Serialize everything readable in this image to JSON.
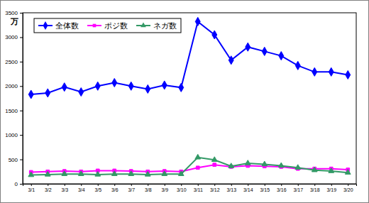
{
  "chart_data": {
    "type": "line",
    "y_label": "万",
    "categories": [
      "3/1",
      "3/2",
      "3/3",
      "3/4",
      "3/5",
      "3/6",
      "3/7",
      "3/8",
      "3/9",
      "3/10",
      "3/11",
      "3/12",
      "3/13",
      "3/14",
      "3/15",
      "3/16",
      "3/17",
      "3/18",
      "3/19",
      "3/20"
    ],
    "series": [
      {
        "name": "全体数",
        "color": "#0000ff",
        "marker": "diamond",
        "values": [
          1830,
          1860,
          1980,
          1880,
          2000,
          2070,
          2000,
          1940,
          2020,
          1970,
          3320,
          3050,
          2530,
          2800,
          2710,
          2620,
          2420,
          2290,
          2290,
          2230
        ]
      },
      {
        "name": "ポジ数",
        "color": "#ff00ff",
        "marker": "square",
        "values": [
          240,
          250,
          260,
          250,
          270,
          270,
          260,
          250,
          260,
          250,
          330,
          390,
          350,
          370,
          360,
          350,
          310,
          310,
          310,
          290
        ]
      },
      {
        "name": "ネガ数",
        "color": "#339966",
        "marker": "triangle",
        "values": [
          180,
          190,
          200,
          200,
          190,
          200,
          200,
          190,
          200,
          200,
          540,
          490,
          360,
          420,
          400,
          370,
          330,
          280,
          260,
          230
        ]
      }
    ],
    "ylim": [
      0,
      3500
    ],
    "yticks": [
      0,
      500,
      1000,
      1500,
      2000,
      2500,
      3000,
      3500
    ],
    "grid": false,
    "legend": "top-left"
  }
}
